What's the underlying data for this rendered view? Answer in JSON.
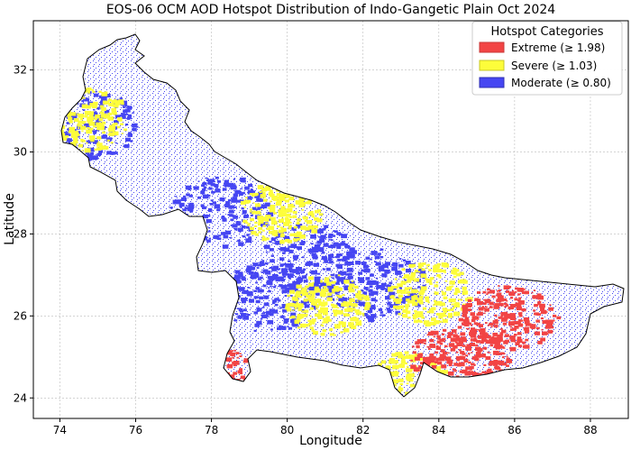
{
  "chart_data": {
    "type": "heatmap",
    "title": "EOS-06 OCM AOD Hotspot Distribution of Indo-Gangetic Plain Oct 2024",
    "xlabel": "Longitude",
    "ylabel": "Latitude",
    "xlim": [
      73.3,
      89.0
    ],
    "ylim": [
      23.5,
      33.2
    ],
    "x_ticks": [
      74,
      76,
      78,
      80,
      82,
      84,
      86,
      88
    ],
    "y_ticks": [
      24,
      26,
      28,
      30,
      32
    ],
    "x_tick_labels": [
      "74",
      "76",
      "78",
      "80",
      "82",
      "84",
      "86",
      "88"
    ],
    "y_tick_labels": [
      "24",
      "26",
      "28",
      "30",
      "32"
    ],
    "grid": true,
    "legend": {
      "title": "Hotspot Categories",
      "placement": "top-right",
      "entries": [
        {
          "label": "Extreme (≥ 1.98)",
          "color": "#f24444"
        },
        {
          "label": "Severe (≥ 1.03)",
          "color": "#fdfd3a"
        },
        {
          "label": "Moderate (≥ 0.80)",
          "color": "#4646f2"
        }
      ]
    },
    "regions": [
      {
        "category": "Moderate",
        "lon": 74.7,
        "lat": 30.7
      },
      {
        "category": "Severe",
        "lon": 74.7,
        "lat": 30.8
      },
      {
        "category": "Moderate",
        "lon": 78.2,
        "lat": 28.6
      },
      {
        "category": "Severe",
        "lon": 79.8,
        "lat": 28.6
      },
      {
        "category": "Moderate",
        "lon": 80.5,
        "lat": 27.4
      },
      {
        "category": "Moderate",
        "lon": 79.5,
        "lat": 26.5
      },
      {
        "category": "Severe",
        "lon": 81.0,
        "lat": 26.3
      },
      {
        "category": "Moderate",
        "lon": 82.3,
        "lat": 26.8
      },
      {
        "category": "Severe",
        "lon": 83.7,
        "lat": 26.6
      },
      {
        "category": "Extreme",
        "lon": 85.8,
        "lat": 26.0
      },
      {
        "category": "Extreme",
        "lon": 84.5,
        "lat": 25.0
      },
      {
        "category": "Severe",
        "lon": 83.2,
        "lat": 24.4
      },
      {
        "category": "Extreme",
        "lon": 77.8,
        "lat": 24.6
      }
    ]
  }
}
